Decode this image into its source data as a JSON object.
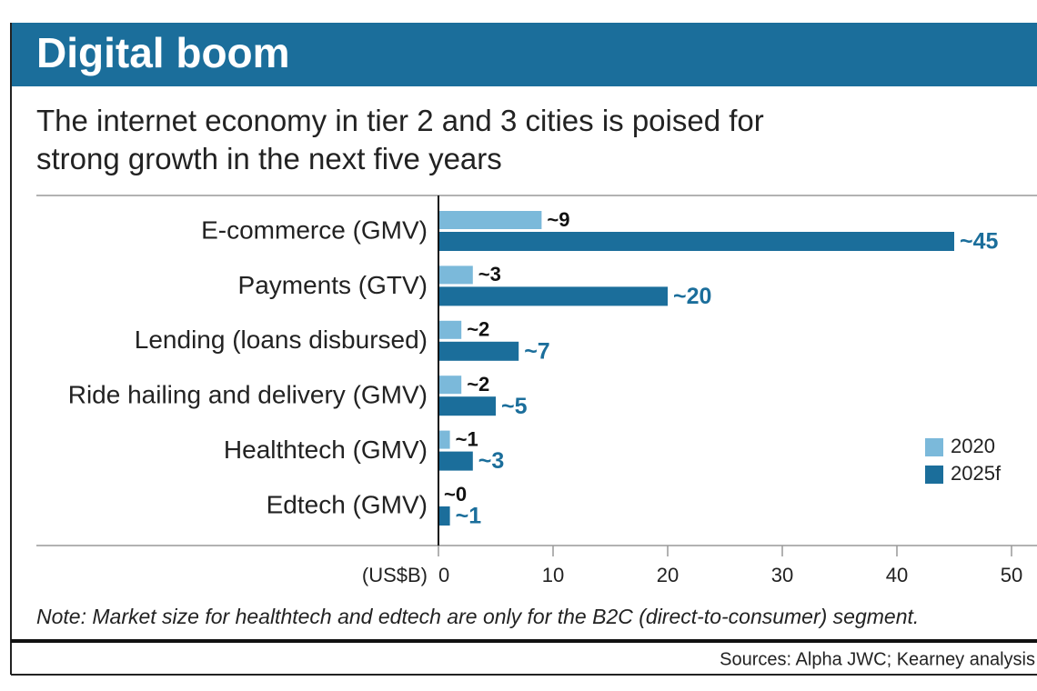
{
  "chart_data": {
    "type": "hbar",
    "title": "Digital boom",
    "subtitle": "The internet economy in tier 2 and 3 cities is poised for\nstrong growth in the next five years",
    "categories": [
      "E-commerce (GMV)",
      "Payments (GTV)",
      "Lending (loans disbursed)",
      "Ride hailing and delivery (GMV)",
      "Healthtech (GMV)",
      "Edtech (GMV)"
    ],
    "series": [
      {
        "name": "2020",
        "color": "#7bb9da",
        "values": [
          9,
          3,
          2,
          2,
          1,
          0
        ],
        "value_labels": [
          "~9",
          "~3",
          "~2",
          "~2",
          "~1",
          "~0"
        ]
      },
      {
        "name": "2025f",
        "color": "#1b6e9b",
        "values": [
          45,
          20,
          7,
          5,
          3,
          1
        ],
        "value_labels": [
          "~45",
          "~20",
          "~7",
          "~5",
          "~3",
          "~1"
        ]
      }
    ],
    "x_label": "(US$B)",
    "xlim": [
      0,
      50
    ],
    "xticks": [
      0,
      10,
      20,
      30,
      40,
      50
    ],
    "legend": "right",
    "note": "Note: Market size for healthtech and edtech are only for the B2C (direct-to-consumer) segment.",
    "source": "Sources: Alpha JWC; Kearney analysis"
  }
}
